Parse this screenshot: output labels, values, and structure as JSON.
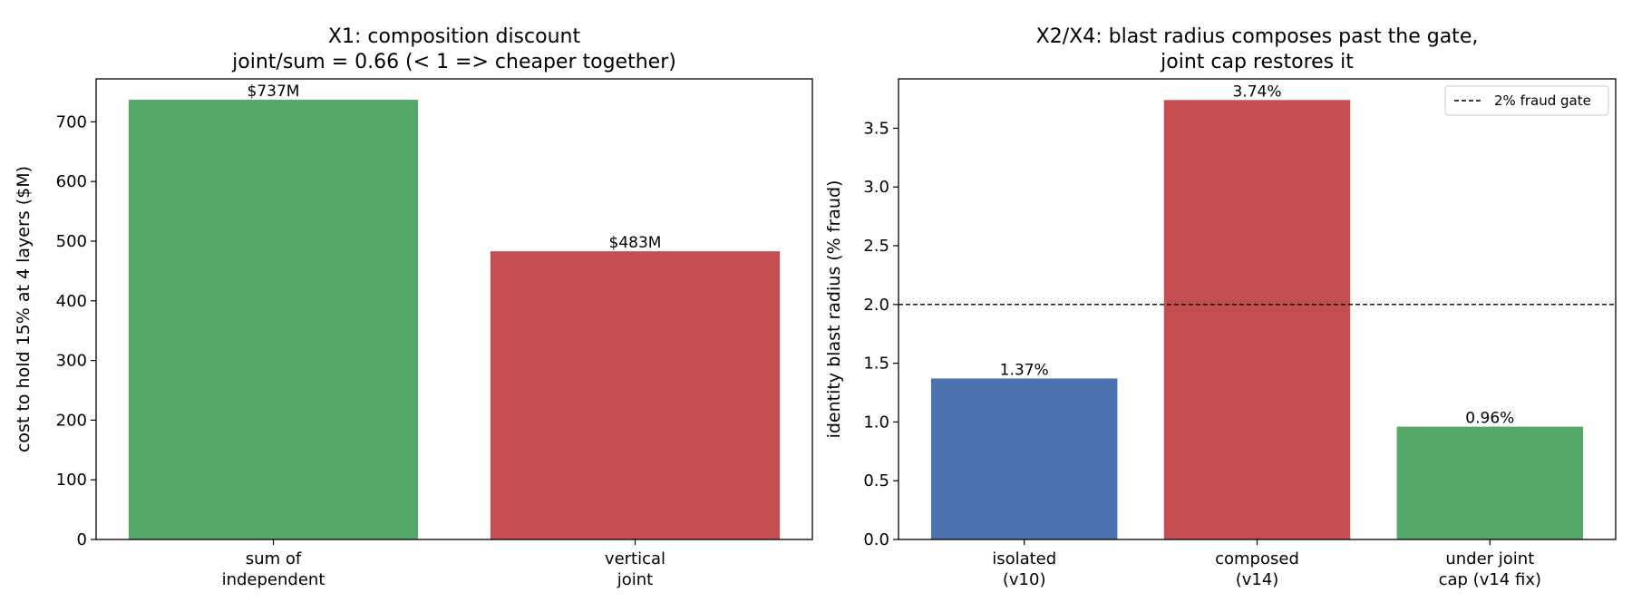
{
  "chart_data": [
    {
      "type": "bar",
      "title": [
        "X1: composition discount",
        "joint/sum = 0.66 (< 1 => cheaper together)"
      ],
      "xlabel": "",
      "ylabel": "cost to hold 15% at 4 layers ($M)",
      "ylim": [
        0,
        772
      ],
      "yticks": [
        0,
        100,
        200,
        300,
        400,
        500,
        600,
        700
      ],
      "ytick_labels": [
        "0",
        "100",
        "200",
        "300",
        "400",
        "500",
        "600",
        "700"
      ],
      "categories": [
        [
          "sum of",
          "independent"
        ],
        [
          "vertical",
          "joint"
        ]
      ],
      "values": [
        737,
        483
      ],
      "data_labels": [
        "$737M",
        "$483M"
      ],
      "colors": [
        "#55a868",
        "#c44e52"
      ],
      "grid": false
    },
    {
      "type": "bar",
      "title": [
        "X2/X4: blast radius composes past the gate,",
        "joint cap restores it"
      ],
      "xlabel": "",
      "ylabel": "identity blast radius (% fraud)",
      "ylim": [
        0,
        3.92
      ],
      "yticks": [
        0.0,
        0.5,
        1.0,
        1.5,
        2.0,
        2.5,
        3.0,
        3.5
      ],
      "ytick_labels": [
        "0.0",
        "0.5",
        "1.0",
        "1.5",
        "2.0",
        "2.5",
        "3.0",
        "3.5"
      ],
      "categories": [
        [
          "isolated",
          "(v10)"
        ],
        [
          "composed",
          "(v14)"
        ],
        [
          "under joint",
          "cap (v14 fix)"
        ]
      ],
      "values": [
        1.37,
        3.74,
        0.96
      ],
      "data_labels": [
        "1.37%",
        "3.74%",
        "0.96%"
      ],
      "colors": [
        "#4c72b0",
        "#c44e52",
        "#55a868"
      ],
      "reference_line": {
        "value": 2.0,
        "style": "dashed",
        "label": "2% fraud gate"
      },
      "legend": {
        "placement": "top-right",
        "entries": [
          "2% fraud gate"
        ]
      },
      "grid": false
    }
  ]
}
